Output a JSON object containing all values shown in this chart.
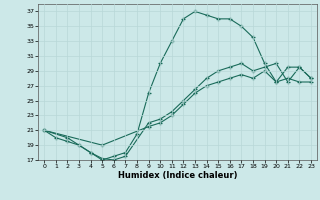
{
  "title": "",
  "xlabel": "Humidex (Indice chaleur)",
  "bg_color": "#cce8e8",
  "line_color": "#1a6b5a",
  "xlim": [
    -0.5,
    23.5
  ],
  "ylim": [
    17,
    38
  ],
  "yticks": [
    17,
    19,
    21,
    23,
    25,
    27,
    29,
    31,
    33,
    35,
    37
  ],
  "xticks": [
    0,
    1,
    2,
    3,
    4,
    5,
    6,
    7,
    8,
    9,
    10,
    11,
    12,
    13,
    14,
    15,
    16,
    17,
    18,
    19,
    20,
    21,
    22,
    23
  ],
  "line1_x": [
    0,
    1,
    2,
    3,
    4,
    5,
    6,
    7,
    8,
    9,
    10,
    11,
    12,
    13,
    14,
    15,
    16,
    17,
    18,
    19,
    20,
    21,
    22,
    23
  ],
  "line1_y": [
    21,
    20,
    19.5,
    19,
    18,
    17,
    17.5,
    18,
    20.5,
    26,
    30,
    33,
    36,
    37,
    36.5,
    36,
    36,
    35,
    33.5,
    30,
    27.5,
    29.5,
    29.5,
    28
  ],
  "line2_x": [
    0,
    2,
    3,
    4,
    5,
    6,
    7,
    9,
    10,
    11,
    12,
    13,
    14,
    15,
    16,
    17,
    18,
    19,
    20,
    21,
    22,
    23
  ],
  "line2_y": [
    21,
    20,
    19,
    18,
    17.2,
    17,
    17.5,
    22,
    22.5,
    23.5,
    25,
    26.5,
    28,
    29,
    29.5,
    30,
    29,
    29.5,
    30,
    27.5,
    29.5,
    28
  ],
  "line3_x": [
    0,
    5,
    9,
    10,
    11,
    12,
    13,
    14,
    15,
    16,
    17,
    18,
    19,
    20,
    21,
    22,
    23
  ],
  "line3_y": [
    21,
    19,
    21.5,
    22,
    23,
    24.5,
    26,
    27,
    27.5,
    28,
    28.5,
    28,
    29,
    27.5,
    28,
    27.5,
    27.5
  ]
}
